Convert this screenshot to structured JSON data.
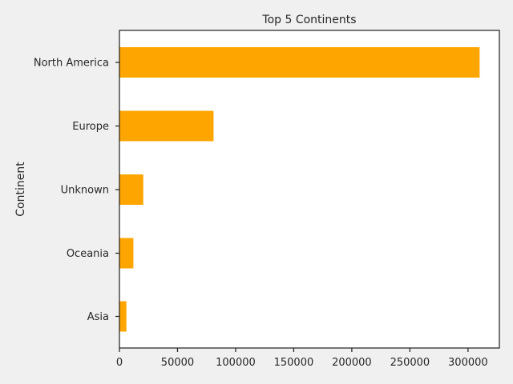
{
  "chart_data": {
    "type": "bar",
    "orientation": "horizontal",
    "title": "Top 5 Continents",
    "xlabel": "",
    "ylabel": "Continent",
    "categories": [
      "North America",
      "Europe",
      "Unknown",
      "Oceania",
      "Asia"
    ],
    "values": [
      310000,
      81000,
      20500,
      12000,
      6000
    ],
    "xlim": [
      0,
      327000
    ],
    "xticks": [
      0,
      50000,
      100000,
      150000,
      200000,
      250000,
      300000
    ],
    "xtick_labels": [
      "0",
      "50000",
      "100000",
      "150000",
      "200000",
      "250000",
      "300000"
    ],
    "bar_color": "#ffa500",
    "background_color": "#f0f0f0",
    "plot_background_color": "#ffffff",
    "grid": false,
    "legend": "none"
  }
}
